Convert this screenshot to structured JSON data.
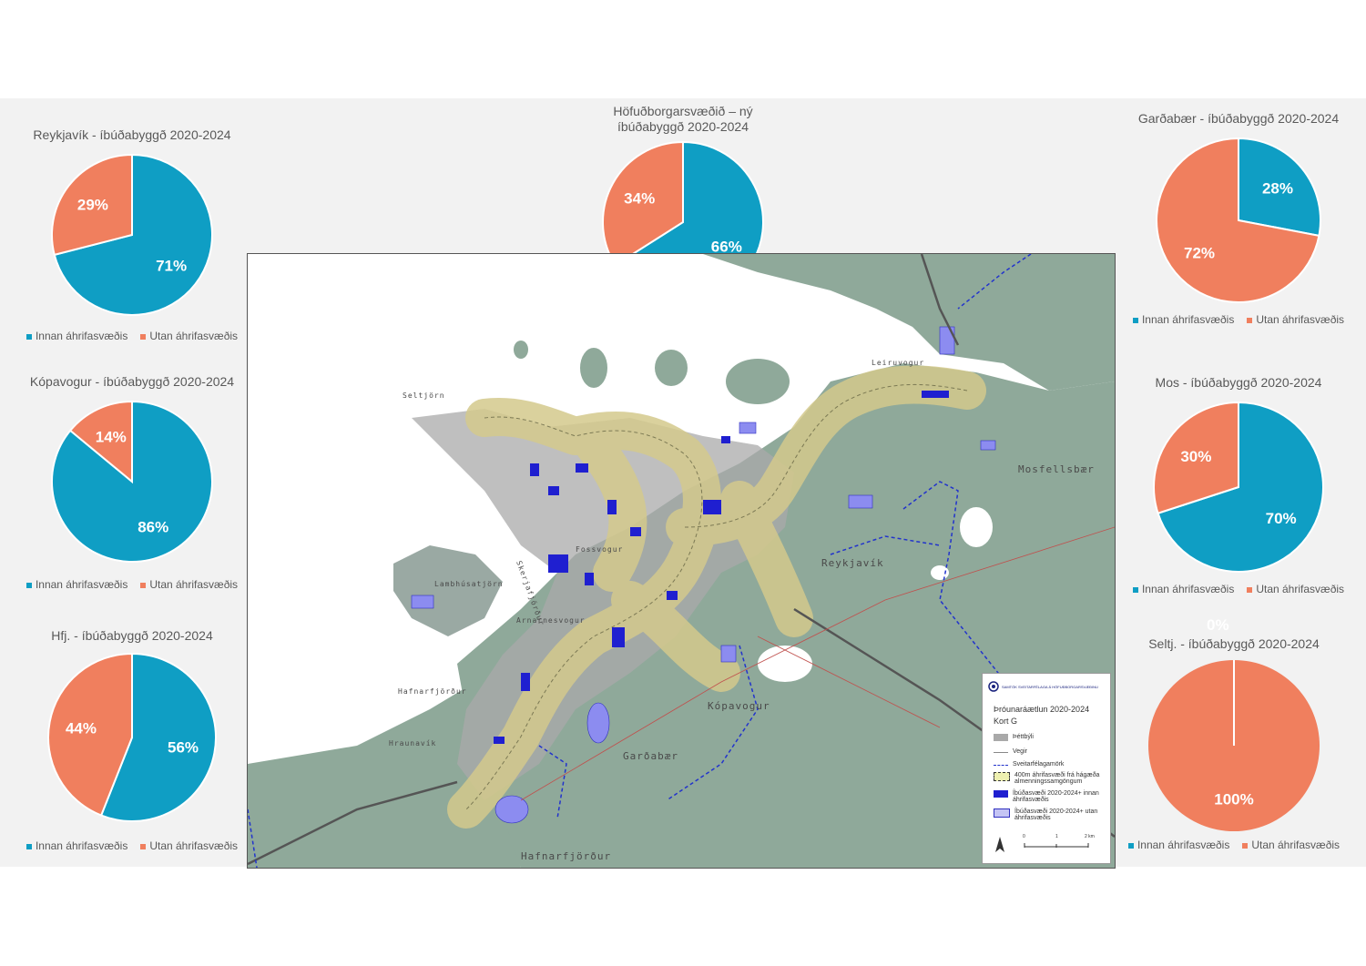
{
  "chart_data": [
    {
      "id": "reykjavik",
      "type": "pie",
      "title": "Reykjavík - íbúðabyggð 2020-2024",
      "categories": [
        "Innan áhrifasvæðis",
        "Utan áhrifasvæðis"
      ],
      "values": [
        71,
        29
      ],
      "labels": [
        "71%",
        "29%"
      ],
      "legend": "bottom"
    },
    {
      "id": "hofudborgarsvaedid",
      "type": "pie",
      "title": "Höfuðborgarsvæðið – ný íbúðabyggð 2020-2024",
      "categories": [
        "Innan áhrifasvæðis",
        "Utan áhrifasvæðis"
      ],
      "values": [
        66,
        34
      ],
      "labels": [
        "66%",
        "34%"
      ],
      "legend": "bottom"
    },
    {
      "id": "gardabaer",
      "type": "pie",
      "title": "Garðabær - íbúðabyggð 2020-2024",
      "categories": [
        "Innan áhrifasvæðis",
        "Utan áhrifasvæðis"
      ],
      "values": [
        28,
        72
      ],
      "labels": [
        "28%",
        "72%"
      ],
      "legend": "bottom"
    },
    {
      "id": "kopavogur",
      "type": "pie",
      "title": "Kópavogur - íbúðabyggð 2020-2024",
      "categories": [
        "Innan áhrifasvæðis",
        "Utan áhrifasvæðis"
      ],
      "values": [
        86,
        14
      ],
      "labels": [
        "86%",
        "14%"
      ],
      "legend": "bottom"
    },
    {
      "id": "mos",
      "type": "pie",
      "title": "Mos - íbúðabyggð 2020-2024",
      "categories": [
        "Innan áhrifasvæðis",
        "Utan áhrifasvæðis"
      ],
      "values": [
        70,
        30
      ],
      "labels": [
        "70%",
        "30%"
      ],
      "legend": "bottom"
    },
    {
      "id": "hfj",
      "type": "pie",
      "title": "Hfj. - íbúðabyggð 2020-2024",
      "categories": [
        "Innan áhrifasvæðis",
        "Utan áhrifasvæðis"
      ],
      "values": [
        56,
        44
      ],
      "labels": [
        "56%",
        "44%"
      ],
      "legend": "bottom"
    },
    {
      "id": "seltj",
      "type": "pie",
      "title": "Seltj. - íbúðabyggð 2020-2024",
      "categories": [
        "Innan áhrifasvæðis",
        "Utan áhrifasvæðis"
      ],
      "values": [
        0,
        100
      ],
      "labels": [
        "0%",
        "100%"
      ],
      "legend": "bottom"
    }
  ],
  "colors": {
    "innan": "#0f9ec4",
    "utan": "#f07f5e"
  },
  "map": {
    "place_labels": [
      "Seltjörn",
      "Leiruvogur",
      "Mosfellsbær",
      "Reykjavík",
      "Fossvogur",
      "Skerjafjörður",
      "Kópavogur",
      "Lambhúsatjörn",
      "Arnarnesvogur",
      "Hafnarfjörður",
      "Hraunavík",
      "Garðabær",
      "Hafnarfjörður"
    ],
    "legend": {
      "org": "SAMTÖK SVEITARFÉLAGA Á HÖFUÐBORGARSVÆÐINU",
      "title": "Þróunaráætlun 2020-2024",
      "subtitle": "Kort G",
      "items": [
        "Þéttbýli",
        "Vegir",
        "Sveitarfélagamörk",
        "400m áhrifasvæði frá hágæða almenningssamgöngum",
        "Íbúðasvæði 2020-2024+ innan áhrifasvæðis",
        "Íbúðasvæði 2020-2024+ utan áhrifasvæðis"
      ],
      "scale": [
        "0",
        "1",
        "2 km"
      ]
    }
  }
}
